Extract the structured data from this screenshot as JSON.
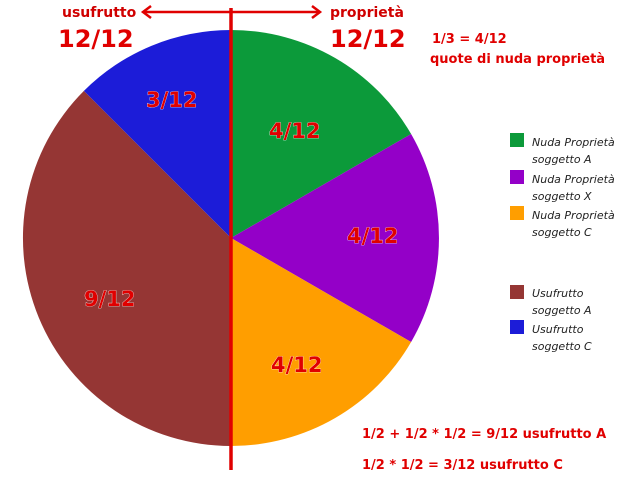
{
  "header": {
    "left_label": "usufrutto",
    "left_total": "12/12",
    "right_label": "proprietà",
    "right_total": "12/12"
  },
  "note": {
    "line1": "1/3 = 4/12",
    "line2": "quote di nuda proprietà"
  },
  "slices": [
    {
      "label": "4/12"
    },
    {
      "label": "4/12"
    },
    {
      "label": "4/12"
    },
    {
      "label": "9/12"
    },
    {
      "label": "3/12"
    }
  ],
  "legend": [
    {
      "line1": "Nuda Proprietà",
      "line2": "soggetto A"
    },
    {
      "line1": "Nuda Proprietà",
      "line2": "soggetto X"
    },
    {
      "line1": "Nuda Proprietà",
      "line2": "soggetto C"
    },
    {
      "line1": "Usufrutto",
      "line2": "soggetto A"
    },
    {
      "line1": "Usufrutto",
      "line2": "soggetto C"
    }
  ],
  "formulas": [
    "1/2 + 1/2 * 1/2 = 9/12 usufrutto A",
    "1/2 * 1/2 = 3/12 usufrutto C"
  ]
}
